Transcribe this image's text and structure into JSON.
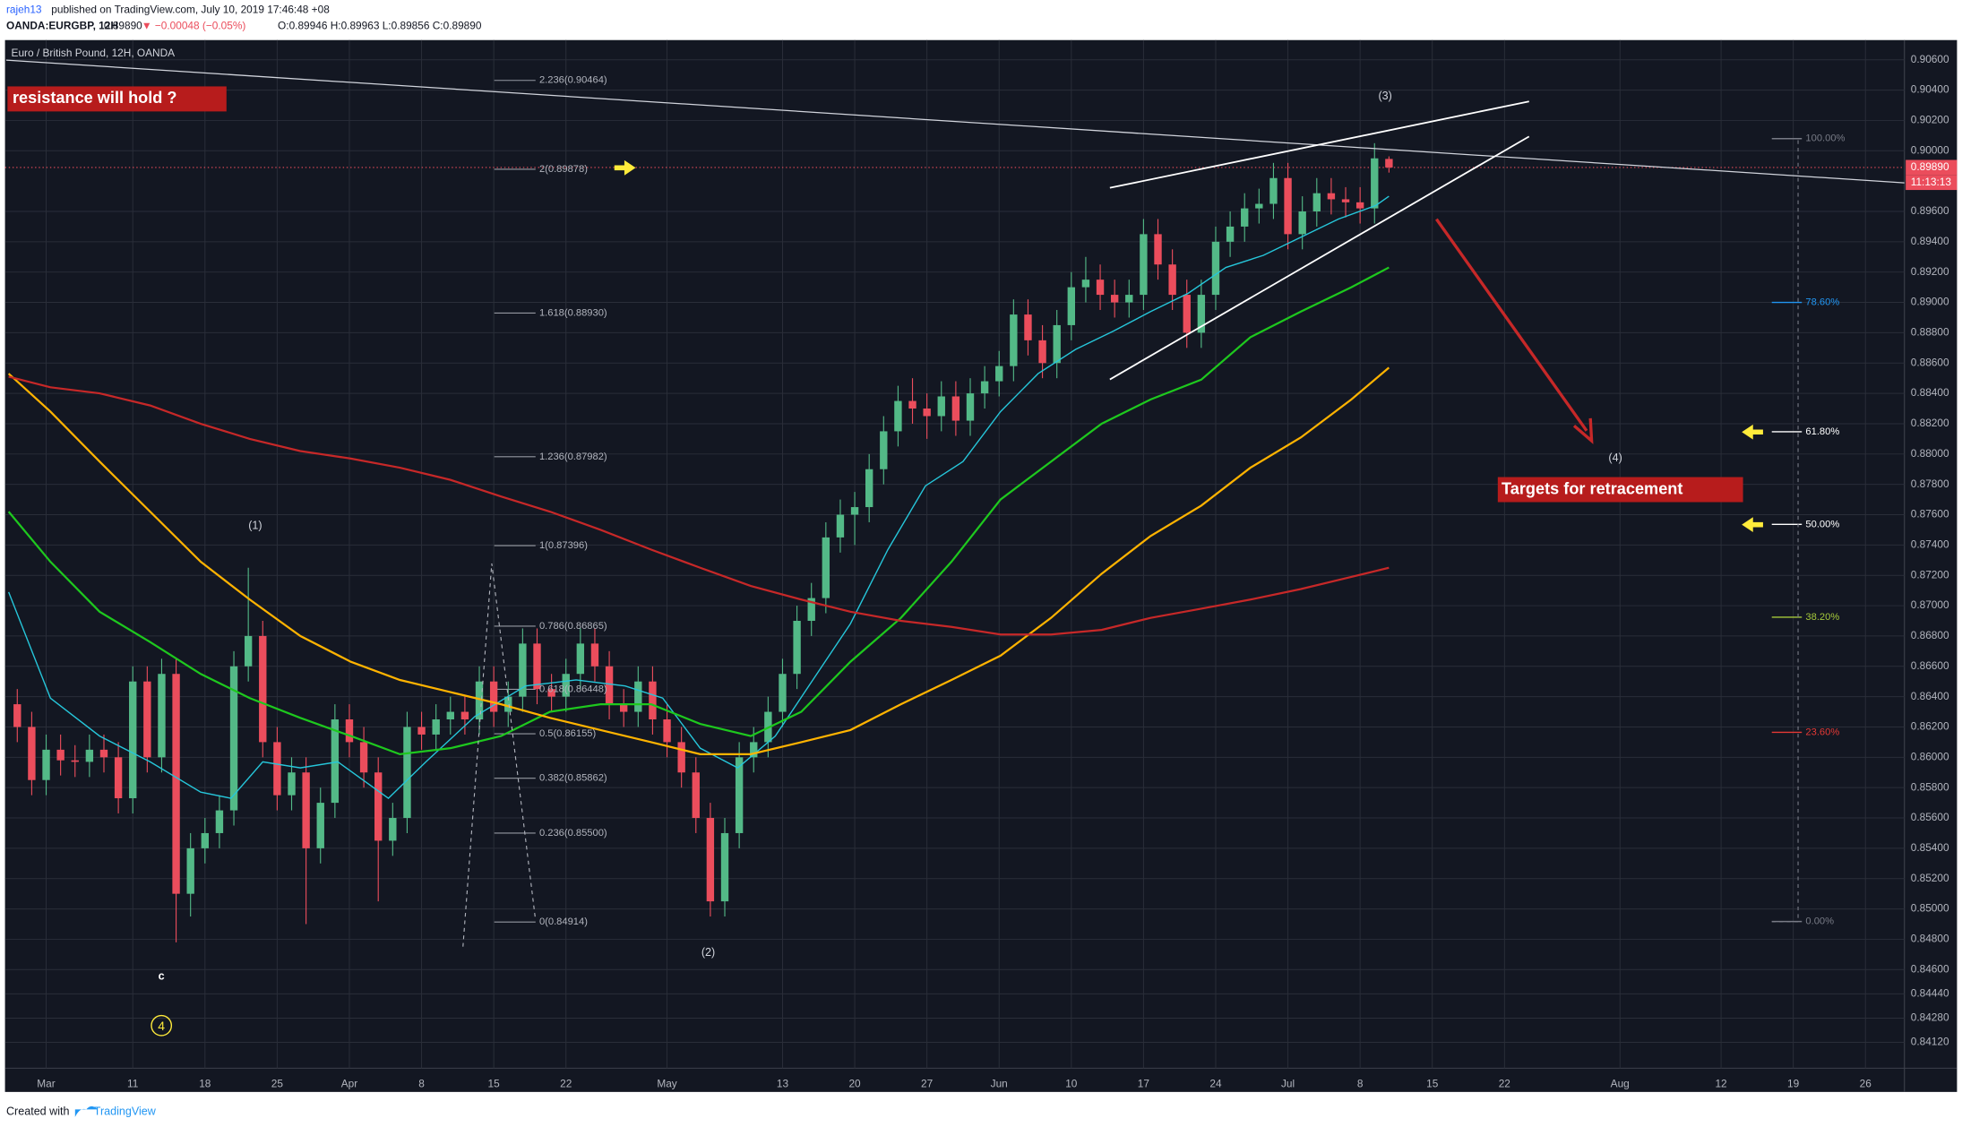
{
  "header": {
    "author": "rajeh13",
    "published": "published on TradingView.com, July 10, 2019 17:46:48 +08",
    "symbol": "OANDA:EURGBP, 12H",
    "last": "0.89890",
    "change": "▼ −0.00048 (−0.05%)",
    "ohlc": "O:0.89946 H:0.89963 L:0.89856 C:0.89890"
  },
  "footer": {
    "created": "Created with",
    "brand": "TradingView"
  },
  "chart_data": {
    "type": "candlestick",
    "title": "Euro / British Pound, 12H, OANDA",
    "up_color": "#53b987",
    "down_color": "#eb4d5c",
    "grid": true,
    "xlim": [
      -2.85,
      128.7
    ],
    "xticks": [
      {
        "value": 0,
        "label": "Mar"
      },
      {
        "value": 6,
        "label": "11"
      },
      {
        "value": 11,
        "label": "18"
      },
      {
        "value": 16,
        "label": "25"
      },
      {
        "value": 21,
        "label": "Apr"
      },
      {
        "value": 26,
        "label": "8"
      },
      {
        "value": 31,
        "label": "15"
      },
      {
        "value": 36,
        "label": "22"
      },
      {
        "value": 43,
        "label": "May"
      },
      {
        "value": 51,
        "label": "13"
      },
      {
        "value": 56,
        "label": "20"
      },
      {
        "value": 61,
        "label": "27"
      },
      {
        "value": 66,
        "label": "Jun"
      },
      {
        "value": 71,
        "label": "10"
      },
      {
        "value": 76,
        "label": "17"
      },
      {
        "value": 81,
        "label": "24"
      },
      {
        "value": 86,
        "label": "Jul"
      },
      {
        "value": 91,
        "label": "8"
      },
      {
        "value": 96,
        "label": "15"
      },
      {
        "value": 101,
        "label": "22"
      },
      {
        "value": 109,
        "label": "Aug"
      },
      {
        "value": 116,
        "label": "12"
      },
      {
        "value": 121,
        "label": "19"
      },
      {
        "value": 126,
        "label": "26"
      }
    ],
    "ylim": [
      0.8395,
      0.9073
    ],
    "yticks": [
      {
        "value": 0.906,
        "label": "0.90600"
      },
      {
        "value": 0.904,
        "label": "0.90400"
      },
      {
        "value": 0.902,
        "label": "0.90200"
      },
      {
        "value": 0.9,
        "label": "0.90000"
      },
      {
        "value": 0.896,
        "label": "0.89600"
      },
      {
        "value": 0.894,
        "label": "0.89400"
      },
      {
        "value": 0.892,
        "label": "0.89200"
      },
      {
        "value": 0.89,
        "label": "0.89000"
      },
      {
        "value": 0.888,
        "label": "0.88800"
      },
      {
        "value": 0.886,
        "label": "0.88600"
      },
      {
        "value": 0.884,
        "label": "0.88400"
      },
      {
        "value": 0.882,
        "label": "0.88200"
      },
      {
        "value": 0.88,
        "label": "0.88000"
      },
      {
        "value": 0.878,
        "label": "0.87800"
      },
      {
        "value": 0.876,
        "label": "0.87600"
      },
      {
        "value": 0.874,
        "label": "0.87400"
      },
      {
        "value": 0.872,
        "label": "0.87200"
      },
      {
        "value": 0.87,
        "label": "0.87000"
      },
      {
        "value": 0.868,
        "label": "0.86800"
      },
      {
        "value": 0.866,
        "label": "0.86600"
      },
      {
        "value": 0.864,
        "label": "0.86400"
      },
      {
        "value": 0.862,
        "label": "0.86200"
      },
      {
        "value": 0.86,
        "label": "0.86000"
      },
      {
        "value": 0.858,
        "label": "0.85800"
      },
      {
        "value": 0.856,
        "label": "0.85600"
      },
      {
        "value": 0.854,
        "label": "0.85400"
      },
      {
        "value": 0.852,
        "label": "0.85200"
      },
      {
        "value": 0.85,
        "label": "0.85000"
      },
      {
        "value": 0.848,
        "label": "0.84800"
      },
      {
        "value": 0.846,
        "label": "0.84600"
      },
      {
        "value": 0.8444,
        "label": "0.84440"
      },
      {
        "value": 0.8428,
        "label": "0.84280"
      },
      {
        "value": 0.8412,
        "label": "0.84120"
      }
    ],
    "last_price": {
      "value": 0.8989,
      "label": "0.89890",
      "color": "#eb4d5c"
    },
    "countdown": "11:13:13",
    "x": [
      -2,
      -1,
      0,
      1,
      2,
      3,
      4,
      5,
      6,
      7,
      8,
      9,
      10,
      11,
      12,
      13,
      14,
      15,
      16,
      17,
      18,
      19,
      20,
      21,
      22,
      23,
      24,
      25,
      26,
      27,
      28,
      29,
      30,
      31,
      32,
      33,
      34,
      35,
      36,
      37,
      38,
      39,
      40,
      41,
      42,
      43,
      44,
      45,
      46,
      47,
      48,
      49,
      50,
      51,
      52,
      53,
      54,
      55,
      56,
      57,
      58,
      59,
      60,
      61,
      62,
      63,
      64,
      65,
      66,
      67,
      68,
      69,
      70,
      71,
      72,
      73,
      74,
      75,
      76,
      77,
      78,
      79,
      80,
      81,
      82,
      83,
      84,
      85,
      86,
      87,
      88,
      89,
      90,
      91,
      92,
      93
    ],
    "ohlc": [
      [
        0.8635,
        0.8645,
        0.861,
        0.862
      ],
      [
        0.862,
        0.863,
        0.8575,
        0.8585
      ],
      [
        0.8585,
        0.8615,
        0.8575,
        0.8605
      ],
      [
        0.8605,
        0.8615,
        0.8588,
        0.8598
      ],
      [
        0.8598,
        0.8608,
        0.8587,
        0.8597
      ],
      [
        0.8597,
        0.8615,
        0.8587,
        0.8605
      ],
      [
        0.8605,
        0.8615,
        0.859,
        0.86
      ],
      [
        0.86,
        0.861,
        0.8563,
        0.8573
      ],
      [
        0.8573,
        0.866,
        0.8563,
        0.865
      ],
      [
        0.865,
        0.866,
        0.859,
        0.86
      ],
      [
        0.86,
        0.8665,
        0.859,
        0.8655
      ],
      [
        0.8655,
        0.8665,
        0.8478,
        0.851
      ],
      [
        0.851,
        0.855,
        0.8495,
        0.854
      ],
      [
        0.854,
        0.856,
        0.853,
        0.855
      ],
      [
        0.855,
        0.8575,
        0.854,
        0.8565
      ],
      [
        0.8565,
        0.867,
        0.8555,
        0.866
      ],
      [
        0.866,
        0.8725,
        0.865,
        0.868
      ],
      [
        0.868,
        0.869,
        0.86,
        0.861
      ],
      [
        0.861,
        0.862,
        0.8565,
        0.8575
      ],
      [
        0.8575,
        0.86,
        0.8565,
        0.859
      ],
      [
        0.859,
        0.86,
        0.849,
        0.854
      ],
      [
        0.854,
        0.858,
        0.853,
        0.857
      ],
      [
        0.857,
        0.8635,
        0.856,
        0.8625
      ],
      [
        0.8625,
        0.8635,
        0.86,
        0.861
      ],
      [
        0.861,
        0.862,
        0.858,
        0.859
      ],
      [
        0.859,
        0.86,
        0.8505,
        0.8545
      ],
      [
        0.8545,
        0.857,
        0.8535,
        0.856
      ],
      [
        0.856,
        0.863,
        0.855,
        0.862
      ],
      [
        0.862,
        0.863,
        0.8605,
        0.8615
      ],
      [
        0.8615,
        0.8635,
        0.8605,
        0.8625
      ],
      [
        0.8625,
        0.864,
        0.8615,
        0.863
      ],
      [
        0.863,
        0.864,
        0.8615,
        0.8625
      ],
      [
        0.8625,
        0.866,
        0.8615,
        0.865
      ],
      [
        0.865,
        0.866,
        0.862,
        0.863
      ],
      [
        0.863,
        0.865,
        0.862,
        0.864
      ],
      [
        0.864,
        0.8685,
        0.863,
        0.8675
      ],
      [
        0.8675,
        0.8685,
        0.8635,
        0.8645
      ],
      [
        0.8645,
        0.8655,
        0.863,
        0.864
      ],
      [
        0.864,
        0.8665,
        0.863,
        0.8655
      ],
      [
        0.8655,
        0.8685,
        0.8645,
        0.8675
      ],
      [
        0.8675,
        0.8685,
        0.865,
        0.866
      ],
      [
        0.866,
        0.867,
        0.8625,
        0.8635
      ],
      [
        0.8635,
        0.8645,
        0.862,
        0.863
      ],
      [
        0.863,
        0.866,
        0.862,
        0.865
      ],
      [
        0.865,
        0.866,
        0.8615,
        0.8625
      ],
      [
        0.8625,
        0.8635,
        0.86,
        0.861
      ],
      [
        0.861,
        0.862,
        0.858,
        0.859
      ],
      [
        0.859,
        0.86,
        0.855,
        0.856
      ],
      [
        0.856,
        0.857,
        0.8495,
        0.8505
      ],
      [
        0.8505,
        0.856,
        0.8495,
        0.855
      ],
      [
        0.855,
        0.861,
        0.854,
        0.86
      ],
      [
        0.86,
        0.862,
        0.859,
        0.861
      ],
      [
        0.861,
        0.864,
        0.86,
        0.863
      ],
      [
        0.863,
        0.8665,
        0.862,
        0.8655
      ],
      [
        0.8655,
        0.87,
        0.8645,
        0.869
      ],
      [
        0.869,
        0.8715,
        0.868,
        0.8705
      ],
      [
        0.8705,
        0.8755,
        0.8695,
        0.8745
      ],
      [
        0.8745,
        0.877,
        0.8735,
        0.876
      ],
      [
        0.876,
        0.8775,
        0.874,
        0.8765
      ],
      [
        0.8765,
        0.88,
        0.8755,
        0.879
      ],
      [
        0.879,
        0.8825,
        0.878,
        0.8815
      ],
      [
        0.8815,
        0.8845,
        0.8805,
        0.8835
      ],
      [
        0.8835,
        0.885,
        0.882,
        0.883
      ],
      [
        0.883,
        0.884,
        0.881,
        0.8825
      ],
      [
        0.8825,
        0.8848,
        0.8815,
        0.8838
      ],
      [
        0.8838,
        0.8848,
        0.8812,
        0.8822
      ],
      [
        0.8822,
        0.885,
        0.8812,
        0.884
      ],
      [
        0.884,
        0.8858,
        0.883,
        0.8848
      ],
      [
        0.8848,
        0.8868,
        0.8838,
        0.8858
      ],
      [
        0.8858,
        0.8902,
        0.8848,
        0.8892
      ],
      [
        0.8892,
        0.8902,
        0.8865,
        0.8875
      ],
      [
        0.8875,
        0.8885,
        0.885,
        0.886
      ],
      [
        0.886,
        0.8895,
        0.885,
        0.8885
      ],
      [
        0.8885,
        0.892,
        0.8875,
        0.891
      ],
      [
        0.891,
        0.893,
        0.89,
        0.8915
      ],
      [
        0.8915,
        0.8925,
        0.8895,
        0.8905
      ],
      [
        0.8905,
        0.8915,
        0.889,
        0.89
      ],
      [
        0.89,
        0.8915,
        0.889,
        0.8905
      ],
      [
        0.8905,
        0.8955,
        0.8895,
        0.8945
      ],
      [
        0.8945,
        0.8955,
        0.8915,
        0.8925
      ],
      [
        0.8925,
        0.8935,
        0.8895,
        0.8905
      ],
      [
        0.8905,
        0.8915,
        0.887,
        0.888
      ],
      [
        0.888,
        0.8915,
        0.887,
        0.8905
      ],
      [
        0.8905,
        0.895,
        0.8895,
        0.894
      ],
      [
        0.894,
        0.896,
        0.893,
        0.895
      ],
      [
        0.895,
        0.8972,
        0.894,
        0.8962
      ],
      [
        0.8962,
        0.8975,
        0.8952,
        0.8965
      ],
      [
        0.8965,
        0.8992,
        0.8955,
        0.8982
      ],
      [
        0.8982,
        0.8992,
        0.8935,
        0.8945
      ],
      [
        0.8945,
        0.897,
        0.8935,
        0.896
      ],
      [
        0.896,
        0.8982,
        0.895,
        0.8972
      ],
      [
        0.8972,
        0.8982,
        0.8958,
        0.8968
      ],
      [
        0.8968,
        0.8976,
        0.8956,
        0.8966
      ],
      [
        0.8966,
        0.8976,
        0.8952,
        0.8962
      ],
      [
        0.8962,
        0.9005,
        0.8952,
        0.8995
      ],
      [
        0.89946,
        0.89963,
        0.89856,
        0.8989
      ]
    ],
    "overlays": [
      {
        "color": "#26c6da",
        "x": [
          -2.6,
          0.3,
          3.7,
          7.2,
          10.7,
          12.8,
          15,
          17.6,
          20.2,
          23.7,
          26.3,
          29.7,
          33.2,
          36.7,
          40.1,
          42.7,
          45.3,
          47.9,
          50.5,
          53.1,
          55.7,
          58.3,
          60.9,
          63.5,
          66.1,
          68.7,
          71.3,
          73.9,
          76.5,
          79.1,
          81.7,
          84.3,
          86.9,
          89.5,
          92.1,
          93
        ],
        "values": [
          0.8709,
          0.8639,
          0.8614,
          0.8597,
          0.8577,
          0.8573,
          0.8597,
          0.8593,
          0.8597,
          0.8573,
          0.8597,
          0.8627,
          0.8647,
          0.8651,
          0.8647,
          0.8639,
          0.8606,
          0.8593,
          0.8614,
          0.8651,
          0.8688,
          0.8737,
          0.8779,
          0.8795,
          0.8828,
          0.8853,
          0.8869,
          0.8881,
          0.8894,
          0.8906,
          0.8923,
          0.8931,
          0.8943,
          0.8955,
          0.8964,
          0.897
        ]
      },
      {
        "color": "#1ec81e",
        "x": [
          -2.6,
          0.3,
          3.7,
          7.2,
          10.7,
          14.1,
          17.6,
          21.1,
          24.5,
          28,
          31.5,
          34.9,
          38.4,
          41.9,
          45.3,
          48.8,
          52.3,
          55.7,
          59.2,
          62.7,
          66.1,
          69.6,
          73.1,
          76.5,
          80,
          83.4,
          86.9,
          90.4,
          93
        ],
        "values": [
          0.8762,
          0.8729,
          0.8696,
          0.8676,
          0.8655,
          0.8639,
          0.8626,
          0.8614,
          0.8602,
          0.8606,
          0.8614,
          0.863,
          0.8635,
          0.8635,
          0.8622,
          0.8614,
          0.863,
          0.8663,
          0.8692,
          0.8729,
          0.877,
          0.8795,
          0.882,
          0.8836,
          0.8849,
          0.8877,
          0.8894,
          0.891,
          0.8923
        ]
      },
      {
        "color": "#ffb300",
        "x": [
          -2.6,
          0.3,
          3.7,
          7.2,
          10.7,
          14.1,
          17.6,
          21.1,
          24.5,
          28,
          31.5,
          34.9,
          38.4,
          41.9,
          45.3,
          48.8,
          52.3,
          55.7,
          59.2,
          62.7,
          66.1,
          69.6,
          73.1,
          76.5,
          80,
          83.4,
          86.9,
          90.4,
          93
        ],
        "values": [
          0.8853,
          0.8828,
          0.8795,
          0.8762,
          0.8729,
          0.8704,
          0.868,
          0.8663,
          0.8651,
          0.8643,
          0.8635,
          0.8626,
          0.8618,
          0.861,
          0.8602,
          0.8602,
          0.861,
          0.8618,
          0.8635,
          0.8651,
          0.8667,
          0.8692,
          0.8721,
          0.8746,
          0.8766,
          0.8791,
          0.8811,
          0.8836,
          0.8857
        ]
      },
      {
        "color": "#c62828",
        "x": [
          -2.6,
          0.3,
          3.7,
          7.2,
          10.7,
          14.1,
          17.6,
          21.1,
          24.5,
          28,
          31.5,
          34.9,
          38.4,
          41.9,
          45.3,
          48.8,
          52.3,
          55.7,
          59.2,
          62.7,
          66.1,
          69.6,
          73.1,
          76.5,
          80,
          83.4,
          86.9,
          90.4,
          93
        ],
        "values": [
          0.8851,
          0.8844,
          0.884,
          0.8832,
          0.882,
          0.881,
          0.8802,
          0.8797,
          0.8791,
          0.8783,
          0.8772,
          0.8762,
          0.875,
          0.8737,
          0.8725,
          0.8713,
          0.8704,
          0.8696,
          0.869,
          0.8686,
          0.8681,
          0.8681,
          0.8684,
          0.8692,
          0.8698,
          0.8704,
          0.8711,
          0.8719,
          0.8725
        ]
      }
    ],
    "fib_levels": [
      {
        "ratio": 2.236,
        "price": 0.90464,
        "label": "2.236(0.90464)"
      },
      {
        "ratio": 2,
        "price": 0.89878,
        "label": "2(0.89878)"
      },
      {
        "ratio": 1.618,
        "price": 0.8893,
        "label": "1.618(0.88930)"
      },
      {
        "ratio": 1.236,
        "price": 0.87982,
        "label": "1.236(0.87982)"
      },
      {
        "ratio": 1,
        "price": 0.87396,
        "label": "1(0.87396)"
      },
      {
        "ratio": 0.786,
        "price": 0.86865,
        "label": "0.786(0.86865)"
      },
      {
        "ratio": 0.618,
        "price": 0.86448,
        "label": "0.618(0.86448)"
      },
      {
        "ratio": 0.5,
        "price": 0.86155,
        "label": "0.5(0.86155)"
      },
      {
        "ratio": 0.382,
        "price": 0.85862,
        "label": "0.382(0.85862)"
      },
      {
        "ratio": 0.236,
        "price": 0.855,
        "label": "0.236(0.85500)"
      },
      {
        "ratio": 0,
        "price": 0.84914,
        "label": "0(0.84914)"
      }
    ],
    "retracement": [
      {
        "value": 100,
        "label": "100.00%",
        "price": 0.9008,
        "color": "#787b86"
      },
      {
        "value": 78.6,
        "label": "78.60%",
        "price": 0.89,
        "color": "#2196f3"
      },
      {
        "value": 61.8,
        "label": "61.80%",
        "price": 0.88147,
        "color": "#ffffff"
      },
      {
        "value": 50,
        "label": "50.00%",
        "price": 0.87536,
        "color": "#ffffff"
      },
      {
        "value": 38.2,
        "label": "38.20%",
        "price": 0.86924,
        "color": "#a5c93b"
      },
      {
        "value": 23.6,
        "label": "23.60%",
        "price": 0.86165,
        "color": "#e53935"
      },
      {
        "value": 0,
        "label": "0.00%",
        "price": 0.84917,
        "color": "#787b86"
      }
    ],
    "annotations": [
      "(1)",
      "(2)",
      "(3)",
      "(4)",
      "c",
      "4",
      "resistance will hold ?",
      "Targets for retracement"
    ]
  }
}
